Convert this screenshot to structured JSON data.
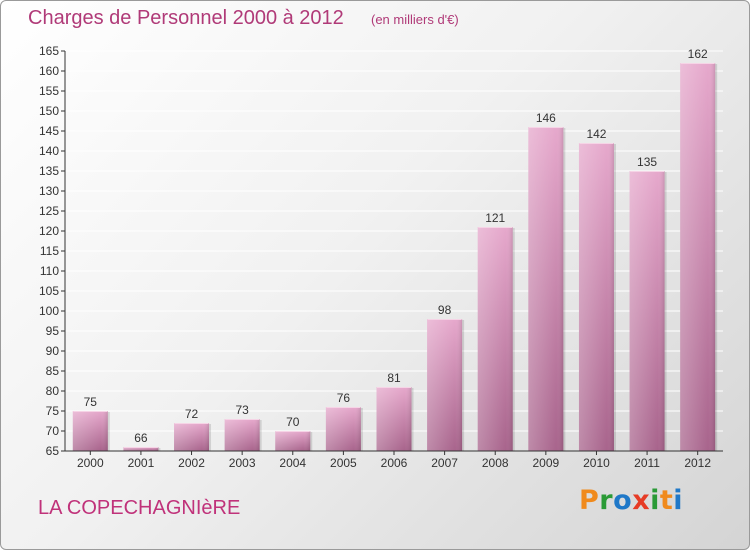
{
  "header": {
    "title": "Charges de Personnel 2000 à 2012",
    "subtitle": "(en milliers d'€)"
  },
  "footer": {
    "place": "LA COPECHAGNIèRE",
    "logo_text": "Proxiti",
    "logo_colors": [
      "#f08a1c",
      "#2a9a36",
      "#1f78c8",
      "#e63b25",
      "#2a9a36",
      "#f08a1c",
      "#1f78c8"
    ]
  },
  "colors": {
    "bar_top": "#e6a8cc",
    "bar_bottom": "#a8648c",
    "axis": "#333333",
    "grid": "#ffffff"
  },
  "chart_data": {
    "type": "bar",
    "title": "Charges de Personnel 2000 à 2012",
    "subtitle": "(en milliers d'€)",
    "categories": [
      "2000",
      "2001",
      "2002",
      "2003",
      "2004",
      "2005",
      "2006",
      "2007",
      "2008",
      "2009",
      "2010",
      "2011",
      "2012"
    ],
    "values": [
      75,
      66,
      72,
      73,
      70,
      76,
      81,
      98,
      121,
      146,
      142,
      135,
      162
    ],
    "ylim": [
      65,
      165
    ],
    "yticks": [
      65,
      70,
      75,
      80,
      85,
      90,
      95,
      100,
      105,
      110,
      115,
      120,
      125,
      130,
      135,
      140,
      145,
      150,
      155,
      160,
      165
    ],
    "grid": true,
    "legend": "none"
  }
}
